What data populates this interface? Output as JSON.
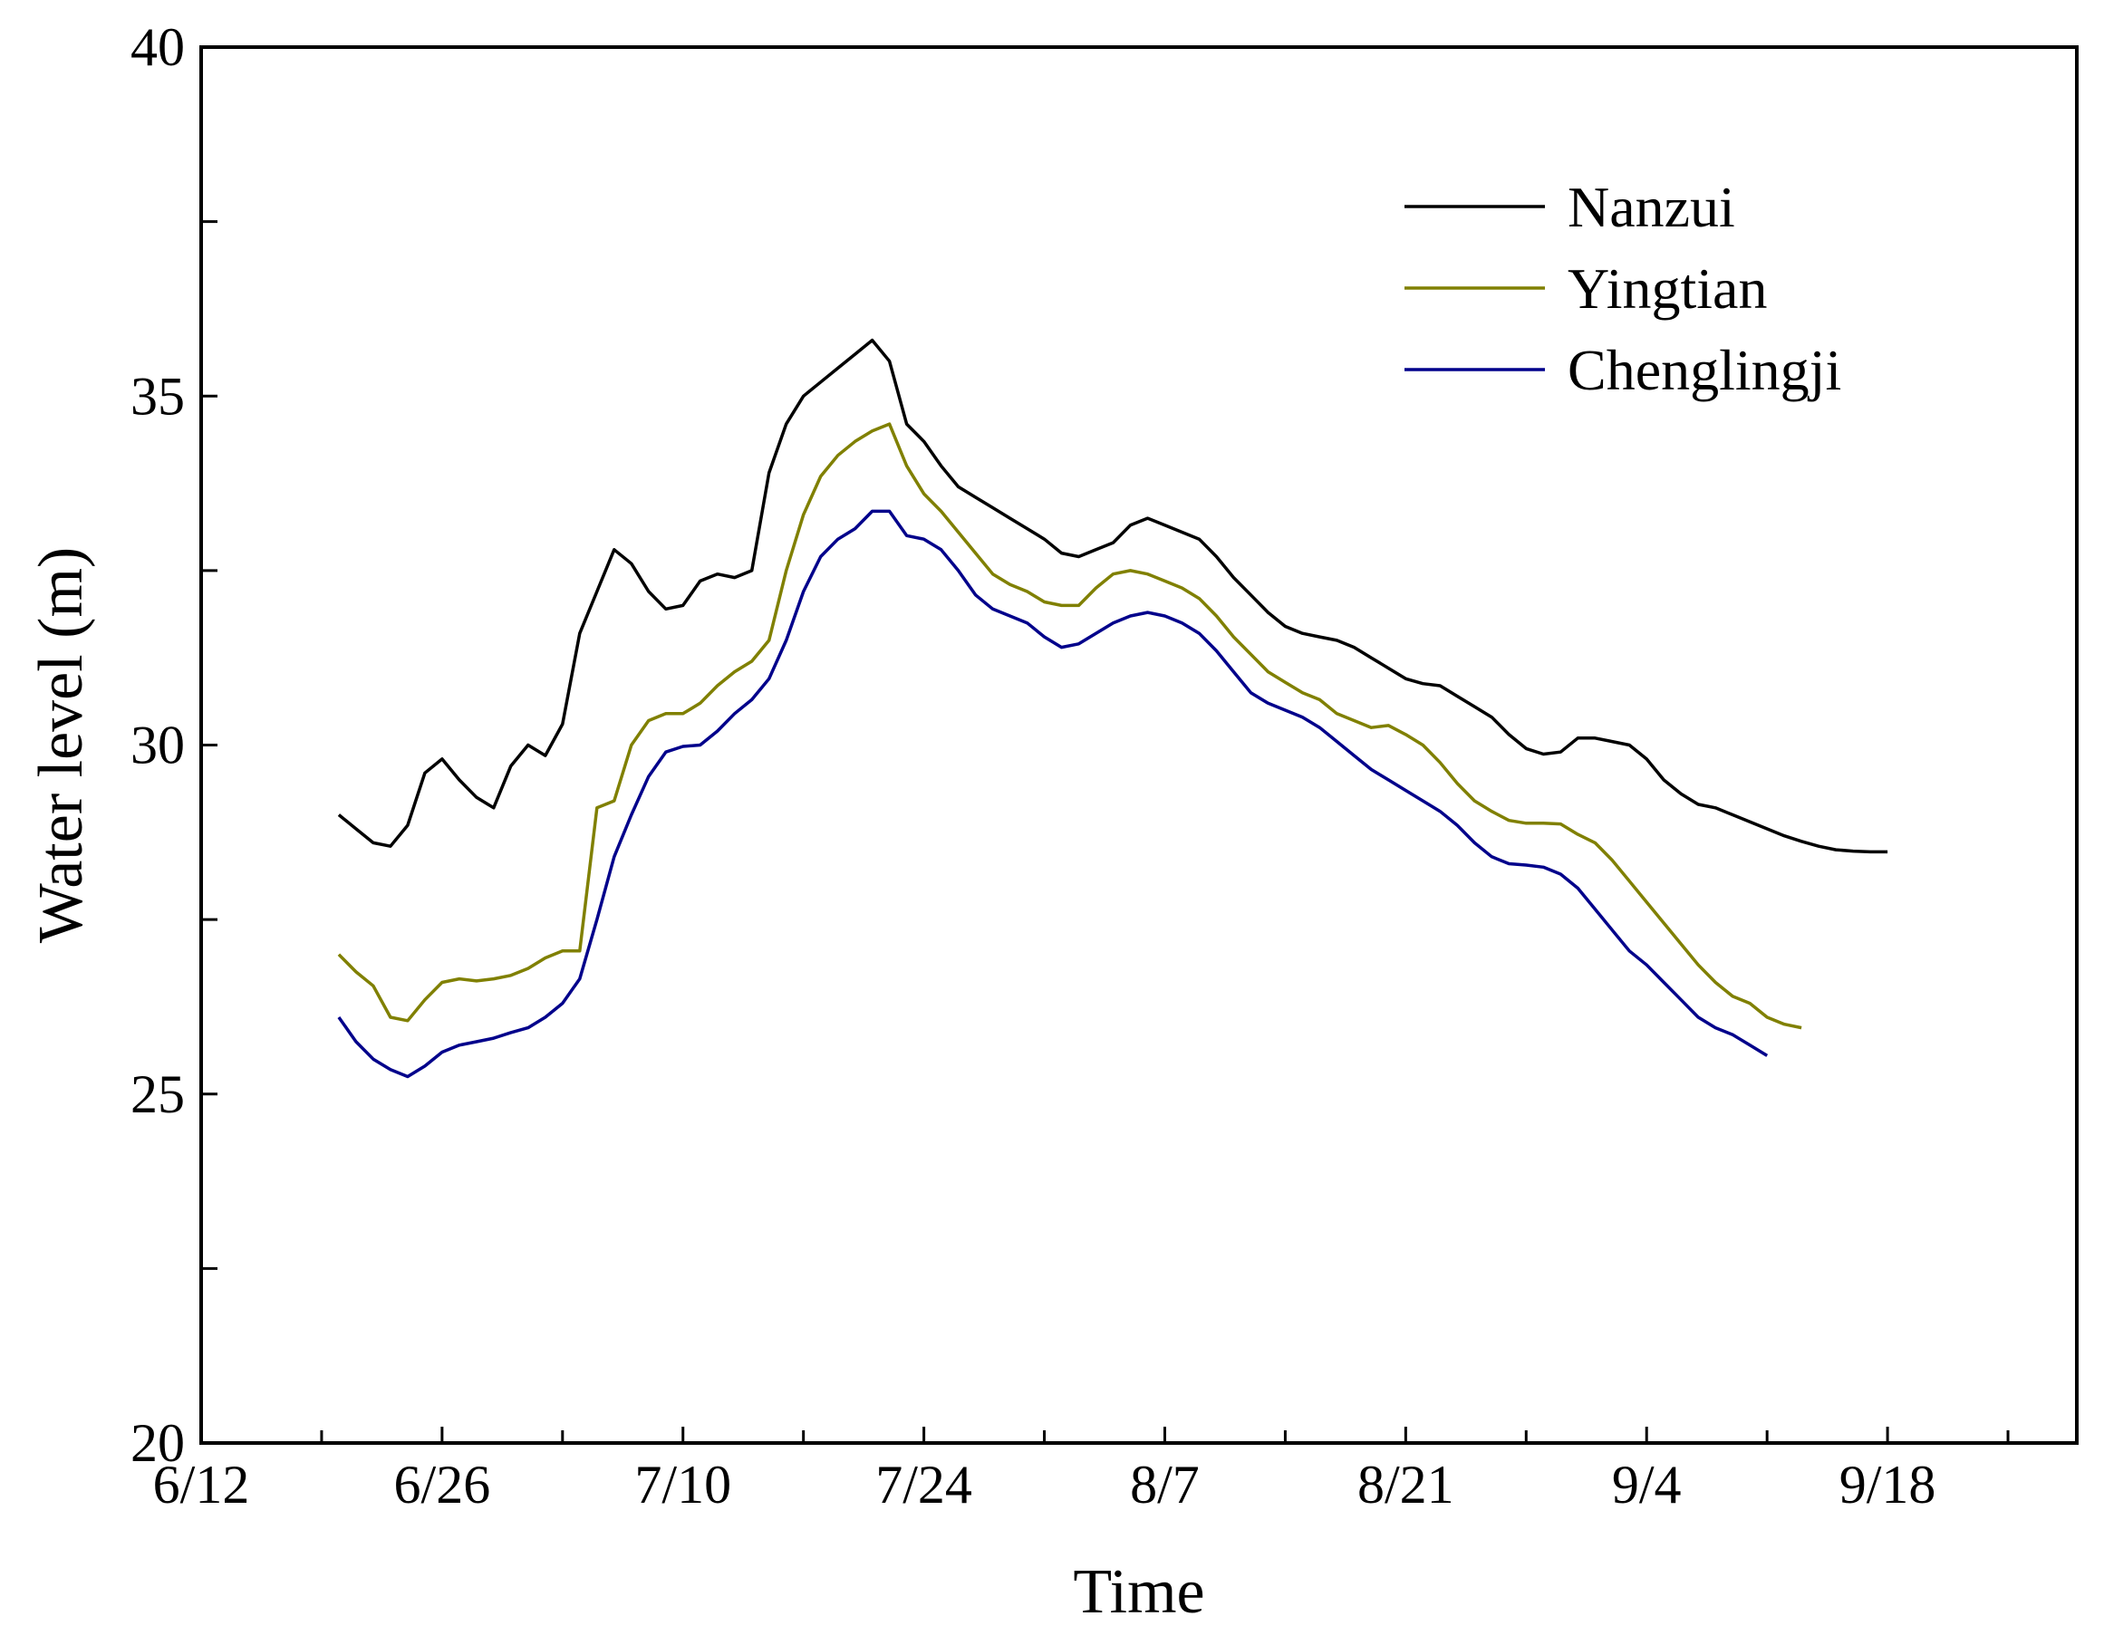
{
  "chart_data": {
    "type": "line",
    "title": "",
    "xlabel": "Time",
    "ylabel": "Water level (m)",
    "ylim": [
      20,
      40
    ],
    "y_ticks": [
      "20",
      "25",
      "30",
      "35",
      "40"
    ],
    "x_ticks": [
      "6/12",
      "6/26",
      "7/10",
      "7/24",
      "8/7",
      "8/21",
      "9/4",
      "9/18"
    ],
    "x_unit": "date (2020)",
    "xlim": [
      "2020-06-12",
      "2020-09-29"
    ],
    "grid": false,
    "legend_position": "top-right",
    "series": [
      {
        "name": "Nanzui",
        "color": "#000000",
        "points": [
          [
            "2020-06-20",
            29.0
          ],
          [
            "2020-06-21",
            28.8
          ],
          [
            "2020-06-22",
            28.6
          ],
          [
            "2020-06-23",
            28.55
          ],
          [
            "2020-06-24",
            28.85
          ],
          [
            "2020-06-25",
            29.6
          ],
          [
            "2020-06-26",
            29.8
          ],
          [
            "2020-06-27",
            29.5
          ],
          [
            "2020-06-28",
            29.25
          ],
          [
            "2020-06-29",
            29.1
          ],
          [
            "2020-06-30",
            29.7
          ],
          [
            "2020-07-01",
            30.0
          ],
          [
            "2020-07-02",
            29.85
          ],
          [
            "2020-07-03",
            30.3
          ],
          [
            "2020-07-04",
            31.6
          ],
          [
            "2020-07-05",
            32.2
          ],
          [
            "2020-07-06",
            32.8
          ],
          [
            "2020-07-07",
            32.6
          ],
          [
            "2020-07-08",
            32.2
          ],
          [
            "2020-07-09",
            31.95
          ],
          [
            "2020-07-10",
            32.0
          ],
          [
            "2020-07-11",
            32.35
          ],
          [
            "2020-07-12",
            32.45
          ],
          [
            "2020-07-13",
            32.4
          ],
          [
            "2020-07-14",
            32.5
          ],
          [
            "2020-07-15",
            33.9
          ],
          [
            "2020-07-16",
            34.6
          ],
          [
            "2020-07-17",
            35.0
          ],
          [
            "2020-07-18",
            35.2
          ],
          [
            "2020-07-19",
            35.4
          ],
          [
            "2020-07-20",
            35.6
          ],
          [
            "2020-07-21",
            35.8
          ],
          [
            "2020-07-22",
            35.5
          ],
          [
            "2020-07-23",
            34.6
          ],
          [
            "2020-07-24",
            34.35
          ],
          [
            "2020-07-25",
            34.0
          ],
          [
            "2020-07-26",
            33.7
          ],
          [
            "2020-07-27",
            33.55
          ],
          [
            "2020-07-28",
            33.4
          ],
          [
            "2020-07-29",
            33.25
          ],
          [
            "2020-07-30",
            33.1
          ],
          [
            "2020-07-31",
            32.95
          ],
          [
            "2020-08-01",
            32.75
          ],
          [
            "2020-08-02",
            32.7
          ],
          [
            "2020-08-03",
            32.8
          ],
          [
            "2020-08-04",
            32.9
          ],
          [
            "2020-08-05",
            33.15
          ],
          [
            "2020-08-06",
            33.25
          ],
          [
            "2020-08-07",
            33.15
          ],
          [
            "2020-08-08",
            33.05
          ],
          [
            "2020-08-09",
            32.95
          ],
          [
            "2020-08-10",
            32.7
          ],
          [
            "2020-08-11",
            32.4
          ],
          [
            "2020-08-12",
            32.15
          ],
          [
            "2020-08-13",
            31.9
          ],
          [
            "2020-08-14",
            31.7
          ],
          [
            "2020-08-15",
            31.6
          ],
          [
            "2020-08-16",
            31.55
          ],
          [
            "2020-08-17",
            31.5
          ],
          [
            "2020-08-18",
            31.4
          ],
          [
            "2020-08-19",
            31.25
          ],
          [
            "2020-08-20",
            31.1
          ],
          [
            "2020-08-21",
            30.95
          ],
          [
            "2020-08-22",
            30.88
          ],
          [
            "2020-08-23",
            30.85
          ],
          [
            "2020-08-24",
            30.7
          ],
          [
            "2020-08-25",
            30.55
          ],
          [
            "2020-08-26",
            30.4
          ],
          [
            "2020-08-27",
            30.15
          ],
          [
            "2020-08-28",
            29.95
          ],
          [
            "2020-08-29",
            29.87
          ],
          [
            "2020-08-30",
            29.9
          ],
          [
            "2020-08-31",
            30.1
          ],
          [
            "2020-09-01",
            30.1
          ],
          [
            "2020-09-02",
            30.05
          ],
          [
            "2020-09-03",
            30.0
          ],
          [
            "2020-09-04",
            29.8
          ],
          [
            "2020-09-05",
            29.5
          ],
          [
            "2020-09-06",
            29.3
          ],
          [
            "2020-09-07",
            29.15
          ],
          [
            "2020-09-08",
            29.1
          ],
          [
            "2020-09-09",
            29.0
          ],
          [
            "2020-09-10",
            28.9
          ],
          [
            "2020-09-11",
            28.8
          ],
          [
            "2020-09-12",
            28.7
          ],
          [
            "2020-09-13",
            28.62
          ],
          [
            "2020-09-14",
            28.55
          ],
          [
            "2020-09-15",
            28.5
          ],
          [
            "2020-09-16",
            28.48
          ],
          [
            "2020-09-17",
            28.47
          ],
          [
            "2020-09-18",
            28.47
          ]
        ]
      },
      {
        "name": "Yingtian",
        "color": "#808000",
        "points": [
          [
            "2020-06-20",
            27.0
          ],
          [
            "2020-06-21",
            26.75
          ],
          [
            "2020-06-22",
            26.55
          ],
          [
            "2020-06-23",
            26.1
          ],
          [
            "2020-06-24",
            26.05
          ],
          [
            "2020-06-25",
            26.35
          ],
          [
            "2020-06-26",
            26.6
          ],
          [
            "2020-06-27",
            26.65
          ],
          [
            "2020-06-28",
            26.62
          ],
          [
            "2020-06-29",
            26.65
          ],
          [
            "2020-06-30",
            26.7
          ],
          [
            "2020-07-01",
            26.8
          ],
          [
            "2020-07-02",
            26.95
          ],
          [
            "2020-07-03",
            27.05
          ],
          [
            "2020-07-04",
            27.05
          ],
          [
            "2020-07-05",
            29.1
          ],
          [
            "2020-07-06",
            29.2
          ],
          [
            "2020-07-07",
            30.0
          ],
          [
            "2020-07-08",
            30.35
          ],
          [
            "2020-07-09",
            30.45
          ],
          [
            "2020-07-10",
            30.45
          ],
          [
            "2020-07-11",
            30.6
          ],
          [
            "2020-07-12",
            30.85
          ],
          [
            "2020-07-13",
            31.05
          ],
          [
            "2020-07-14",
            31.2
          ],
          [
            "2020-07-15",
            31.5
          ],
          [
            "2020-07-16",
            32.5
          ],
          [
            "2020-07-17",
            33.3
          ],
          [
            "2020-07-18",
            33.85
          ],
          [
            "2020-07-19",
            34.15
          ],
          [
            "2020-07-20",
            34.35
          ],
          [
            "2020-07-21",
            34.5
          ],
          [
            "2020-07-22",
            34.6
          ],
          [
            "2020-07-23",
            34.0
          ],
          [
            "2020-07-24",
            33.6
          ],
          [
            "2020-07-25",
            33.35
          ],
          [
            "2020-07-26",
            33.05
          ],
          [
            "2020-07-27",
            32.75
          ],
          [
            "2020-07-28",
            32.45
          ],
          [
            "2020-07-29",
            32.3
          ],
          [
            "2020-07-30",
            32.2
          ],
          [
            "2020-07-31",
            32.05
          ],
          [
            "2020-08-01",
            32.0
          ],
          [
            "2020-08-02",
            32.0
          ],
          [
            "2020-08-03",
            32.25
          ],
          [
            "2020-08-04",
            32.45
          ],
          [
            "2020-08-05",
            32.5
          ],
          [
            "2020-08-06",
            32.45
          ],
          [
            "2020-08-07",
            32.35
          ],
          [
            "2020-08-08",
            32.25
          ],
          [
            "2020-08-09",
            32.1
          ],
          [
            "2020-08-10",
            31.85
          ],
          [
            "2020-08-11",
            31.55
          ],
          [
            "2020-08-12",
            31.3
          ],
          [
            "2020-08-13",
            31.05
          ],
          [
            "2020-08-14",
            30.9
          ],
          [
            "2020-08-15",
            30.75
          ],
          [
            "2020-08-16",
            30.65
          ],
          [
            "2020-08-17",
            30.45
          ],
          [
            "2020-08-18",
            30.35
          ],
          [
            "2020-08-19",
            30.25
          ],
          [
            "2020-08-20",
            30.28
          ],
          [
            "2020-08-21",
            30.15
          ],
          [
            "2020-08-22",
            30.0
          ],
          [
            "2020-08-23",
            29.75
          ],
          [
            "2020-08-24",
            29.45
          ],
          [
            "2020-08-25",
            29.2
          ],
          [
            "2020-08-26",
            29.05
          ],
          [
            "2020-08-27",
            28.92
          ],
          [
            "2020-08-28",
            28.88
          ],
          [
            "2020-08-29",
            28.88
          ],
          [
            "2020-08-30",
            28.87
          ],
          [
            "2020-08-31",
            28.72
          ],
          [
            "2020-09-01",
            28.6
          ],
          [
            "2020-09-02",
            28.35
          ],
          [
            "2020-09-03",
            28.05
          ],
          [
            "2020-09-04",
            27.75
          ],
          [
            "2020-09-05",
            27.45
          ],
          [
            "2020-09-06",
            27.15
          ],
          [
            "2020-09-07",
            26.85
          ],
          [
            "2020-09-08",
            26.6
          ],
          [
            "2020-09-09",
            26.4
          ],
          [
            "2020-09-10",
            26.3
          ],
          [
            "2020-09-11",
            26.1
          ],
          [
            "2020-09-12",
            26.0
          ],
          [
            "2020-09-13",
            25.95
          ]
        ]
      },
      {
        "name": "Chenglingji",
        "color": "#00008B",
        "points": [
          [
            "2020-06-20",
            26.1
          ],
          [
            "2020-06-21",
            25.75
          ],
          [
            "2020-06-22",
            25.5
          ],
          [
            "2020-06-23",
            25.35
          ],
          [
            "2020-06-24",
            25.25
          ],
          [
            "2020-06-25",
            25.4
          ],
          [
            "2020-06-26",
            25.6
          ],
          [
            "2020-06-27",
            25.7
          ],
          [
            "2020-06-28",
            25.75
          ],
          [
            "2020-06-29",
            25.8
          ],
          [
            "2020-06-30",
            25.88
          ],
          [
            "2020-07-01",
            25.95
          ],
          [
            "2020-07-02",
            26.1
          ],
          [
            "2020-07-03",
            26.3
          ],
          [
            "2020-07-04",
            26.65
          ],
          [
            "2020-07-05",
            27.5
          ],
          [
            "2020-07-06",
            28.4
          ],
          [
            "2020-07-07",
            29.0
          ],
          [
            "2020-07-08",
            29.55
          ],
          [
            "2020-07-09",
            29.9
          ],
          [
            "2020-07-10",
            29.98
          ],
          [
            "2020-07-11",
            30.0
          ],
          [
            "2020-07-12",
            30.2
          ],
          [
            "2020-07-13",
            30.45
          ],
          [
            "2020-07-14",
            30.65
          ],
          [
            "2020-07-15",
            30.95
          ],
          [
            "2020-07-16",
            31.5
          ],
          [
            "2020-07-17",
            32.2
          ],
          [
            "2020-07-18",
            32.7
          ],
          [
            "2020-07-19",
            32.95
          ],
          [
            "2020-07-20",
            33.1
          ],
          [
            "2020-07-21",
            33.35
          ],
          [
            "2020-07-22",
            33.35
          ],
          [
            "2020-07-23",
            33.0
          ],
          [
            "2020-07-24",
            32.95
          ],
          [
            "2020-07-25",
            32.8
          ],
          [
            "2020-07-26",
            32.5
          ],
          [
            "2020-07-27",
            32.15
          ],
          [
            "2020-07-28",
            31.95
          ],
          [
            "2020-07-29",
            31.85
          ],
          [
            "2020-07-30",
            31.75
          ],
          [
            "2020-07-31",
            31.55
          ],
          [
            "2020-08-01",
            31.4
          ],
          [
            "2020-08-02",
            31.45
          ],
          [
            "2020-08-03",
            31.6
          ],
          [
            "2020-08-04",
            31.75
          ],
          [
            "2020-08-05",
            31.85
          ],
          [
            "2020-08-06",
            31.9
          ],
          [
            "2020-08-07",
            31.85
          ],
          [
            "2020-08-08",
            31.75
          ],
          [
            "2020-08-09",
            31.6
          ],
          [
            "2020-08-10",
            31.35
          ],
          [
            "2020-08-11",
            31.05
          ],
          [
            "2020-08-12",
            30.75
          ],
          [
            "2020-08-13",
            30.6
          ],
          [
            "2020-08-14",
            30.5
          ],
          [
            "2020-08-15",
            30.4
          ],
          [
            "2020-08-16",
            30.25
          ],
          [
            "2020-08-17",
            30.05
          ],
          [
            "2020-08-18",
            29.85
          ],
          [
            "2020-08-19",
            29.65
          ],
          [
            "2020-08-20",
            29.5
          ],
          [
            "2020-08-21",
            29.35
          ],
          [
            "2020-08-22",
            29.2
          ],
          [
            "2020-08-23",
            29.05
          ],
          [
            "2020-08-24",
            28.85
          ],
          [
            "2020-08-25",
            28.6
          ],
          [
            "2020-08-26",
            28.4
          ],
          [
            "2020-08-27",
            28.3
          ],
          [
            "2020-08-28",
            28.28
          ],
          [
            "2020-08-29",
            28.25
          ],
          [
            "2020-08-30",
            28.15
          ],
          [
            "2020-08-31",
            27.95
          ],
          [
            "2020-09-01",
            27.65
          ],
          [
            "2020-09-02",
            27.35
          ],
          [
            "2020-09-03",
            27.05
          ],
          [
            "2020-09-04",
            26.85
          ],
          [
            "2020-09-05",
            26.6
          ],
          [
            "2020-09-06",
            26.35
          ],
          [
            "2020-09-07",
            26.1
          ],
          [
            "2020-09-08",
            25.95
          ],
          [
            "2020-09-09",
            25.85
          ],
          [
            "2020-09-10",
            25.7
          ],
          [
            "2020-09-11",
            25.55
          ]
        ]
      }
    ]
  }
}
